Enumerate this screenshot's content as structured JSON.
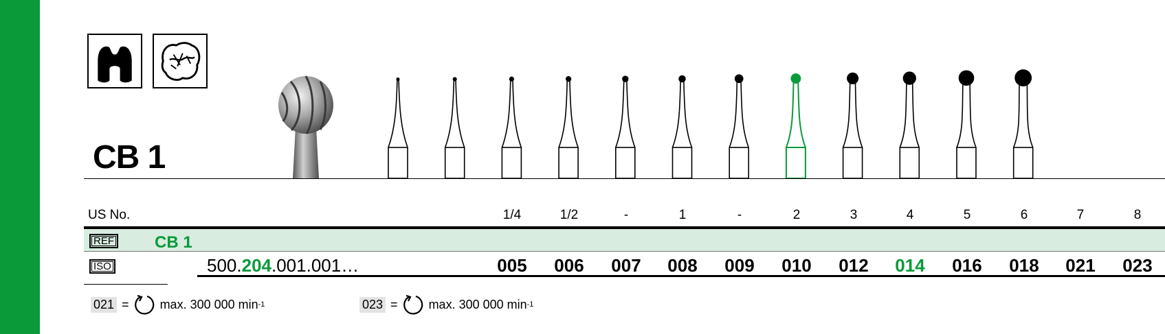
{
  "title": "CB 1",
  "icons": [
    "crown-icon",
    "tooth-occlusal-icon"
  ],
  "colors": {
    "brand_green": "#0a9a3a",
    "ref_row_bg": "#d8ece0"
  },
  "us_no": {
    "label": "US No.",
    "values": [
      "1/4",
      "1/2",
      "-",
      "1",
      "-",
      "2",
      "3",
      "4",
      "5",
      "6",
      "7",
      "8"
    ]
  },
  "ref": {
    "tag": "REF",
    "code": "CB 1"
  },
  "iso": {
    "tag": "ISO",
    "number": {
      "prefix": "500.",
      "highlight": "204",
      "suffix": ".001.001…"
    },
    "sizes": [
      "005",
      "006",
      "007",
      "008",
      "009",
      "010",
      "012",
      "014",
      "016",
      "018",
      "021",
      "023"
    ],
    "highlighted_size": "014"
  },
  "notes": [
    {
      "code": "021",
      "eq": "=",
      "rotation_icon": "rotation-icon",
      "text": "max. 300 000 min",
      "sup": "-1"
    },
    {
      "code": "023",
      "eq": "=",
      "rotation_icon": "rotation-icon",
      "text": "max. 300 000 min",
      "sup": "-1"
    }
  ]
}
